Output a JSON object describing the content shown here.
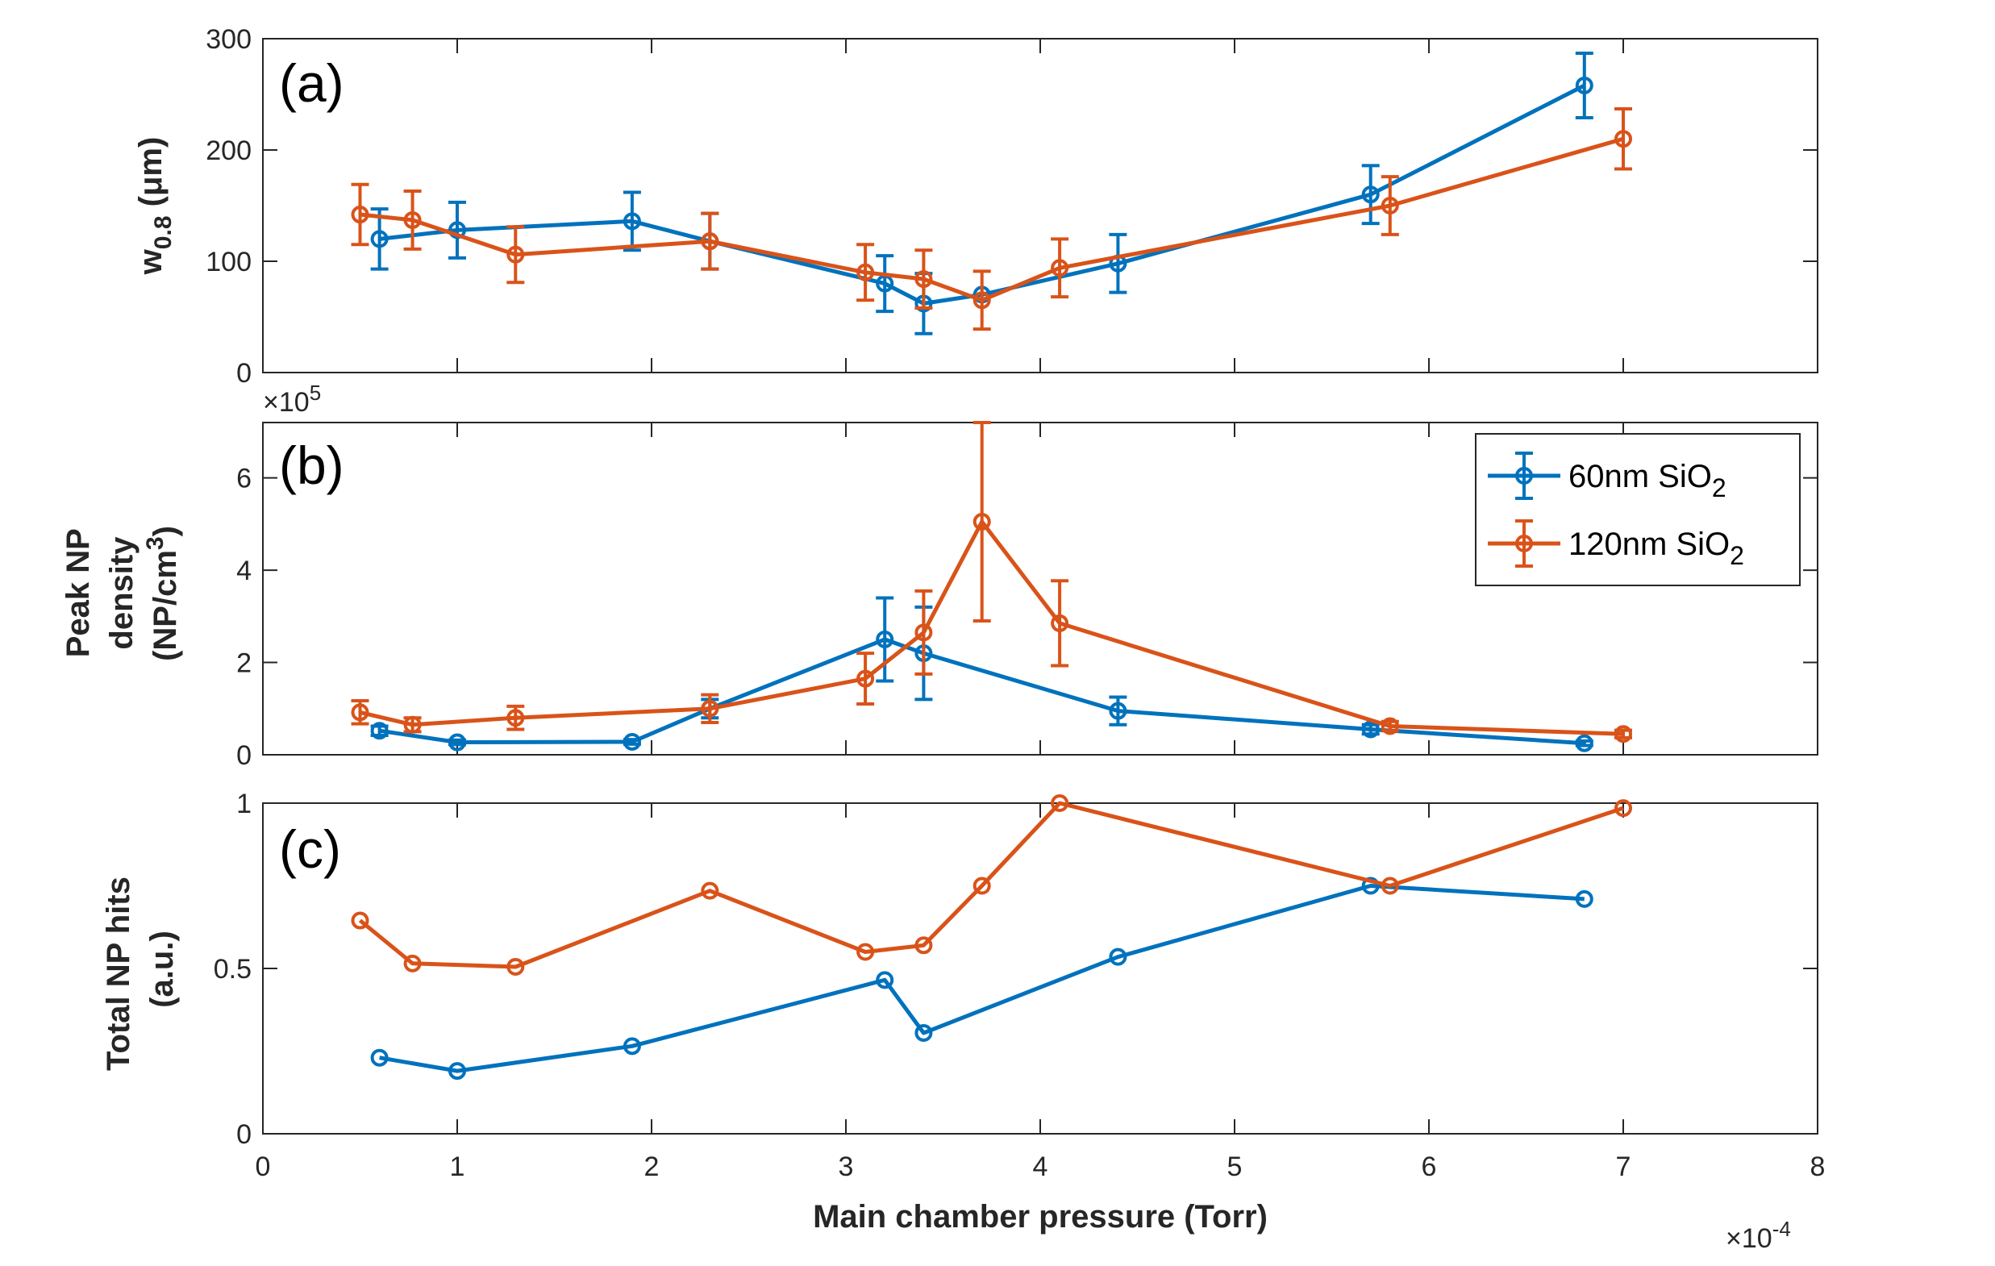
{
  "colors": {
    "series1": "#0072BD",
    "series2": "#D95319",
    "axis": "#262626"
  },
  "legend": {
    "s1": {
      "main": "60nm SiO",
      "sub": "2"
    },
    "s2": {
      "main": "120nm SiO",
      "sub": "2"
    }
  },
  "xaxis": {
    "label": "Main chamber pressure (Torr)",
    "ticks": [
      "0",
      "1",
      "2",
      "3",
      "4",
      "5",
      "6",
      "7",
      "8"
    ],
    "exponent": "-4",
    "times": "×10"
  },
  "chart_data": [
    {
      "type": "line",
      "panel_label": "(a)",
      "ylabel": {
        "main": "w",
        "sub": "0.8",
        "rest": " (μm)"
      },
      "xlim": [
        0,
        8
      ],
      "ylim": [
        0,
        300
      ],
      "yticks": [
        0,
        100,
        200,
        300
      ],
      "series": [
        {
          "name": "60nm SiO2",
          "x": [
            0.6,
            1.0,
            1.9,
            2.3,
            3.2,
            3.4,
            3.7,
            4.4,
            5.7,
            6.8
          ],
          "y": [
            120,
            128,
            136,
            118,
            80,
            62,
            70,
            98,
            160,
            258
          ],
          "err": [
            27,
            25,
            26,
            25,
            25,
            27,
            0,
            26,
            26,
            29
          ]
        },
        {
          "name": "120nm SiO2",
          "x": [
            0.5,
            0.77,
            1.3,
            2.3,
            3.1,
            3.4,
            3.7,
            4.1,
            5.8,
            7.0
          ],
          "y": [
            142,
            137,
            106,
            118,
            90,
            84,
            65,
            94,
            150,
            210
          ],
          "err": [
            27,
            26,
            25,
            25,
            25,
            26,
            26,
            26,
            26,
            27
          ]
        }
      ]
    },
    {
      "type": "line",
      "panel_label": "(b)",
      "ylabel": {
        "line1": "Peak NP",
        "line2": "density",
        "line3": "(NP/cm",
        "sup": "3",
        "close": ")"
      },
      "multiplier": {
        "times": "×10",
        "exp": "5"
      },
      "xlim": [
        0,
        8
      ],
      "ylim": [
        0,
        7.2
      ],
      "yticks": [
        0,
        2,
        4,
        6
      ],
      "series": [
        {
          "name": "60nm SiO2",
          "x": [
            0.6,
            1.0,
            1.9,
            2.3,
            3.2,
            3.4,
            4.4,
            5.7,
            6.8
          ],
          "y": [
            0.52,
            0.27,
            0.28,
            1.0,
            2.5,
            2.2,
            0.95,
            0.55,
            0.25
          ],
          "err": [
            0.1,
            0.05,
            0.05,
            0.2,
            0.9,
            1.0,
            0.3,
            0.1,
            0.05
          ]
        },
        {
          "name": "120nm SiO2",
          "x": [
            0.5,
            0.77,
            1.3,
            2.3,
            3.1,
            3.4,
            3.7,
            4.1,
            5.8,
            7.0
          ],
          "y": [
            0.92,
            0.65,
            0.8,
            1.0,
            1.65,
            2.65,
            5.05,
            2.85,
            0.62,
            0.45
          ],
          "err": [
            0.25,
            0.15,
            0.25,
            0.3,
            0.55,
            0.9,
            2.15,
            0.92,
            0.1,
            0.08
          ]
        }
      ]
    },
    {
      "type": "line",
      "panel_label": "(c)",
      "ylabel": {
        "line1": "Total NP hits",
        "line2": "(a.u.)"
      },
      "xlim": [
        0,
        8
      ],
      "ylim": [
        0,
        1
      ],
      "yticks": [
        0,
        0.5,
        1
      ],
      "yticklabels": [
        "0",
        "0.5",
        "1"
      ],
      "series": [
        {
          "name": "60nm SiO2",
          "x": [
            0.6,
            1.0,
            1.9,
            3.2,
            3.4,
            4.4,
            5.7,
            6.8
          ],
          "y": [
            0.23,
            0.19,
            0.265,
            0.465,
            0.305,
            0.535,
            0.75,
            0.71
          ]
        },
        {
          "name": "120nm SiO2",
          "x": [
            0.5,
            0.77,
            1.3,
            2.3,
            3.1,
            3.4,
            3.7,
            4.1,
            5.8,
            7.0
          ],
          "y": [
            0.645,
            0.515,
            0.505,
            0.735,
            0.55,
            0.57,
            0.75,
            1.0,
            0.75,
            0.985
          ]
        }
      ]
    }
  ]
}
